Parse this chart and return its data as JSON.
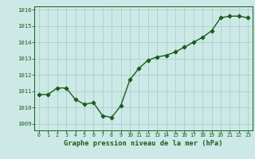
{
  "x": [
    0,
    1,
    2,
    3,
    4,
    5,
    6,
    7,
    8,
    9,
    10,
    11,
    12,
    13,
    14,
    15,
    16,
    17,
    18,
    19,
    20,
    21,
    22,
    23
  ],
  "y": [
    1010.8,
    1010.8,
    1011.2,
    1011.2,
    1010.5,
    1010.2,
    1010.3,
    1009.5,
    1009.4,
    1010.1,
    1011.7,
    1012.4,
    1012.9,
    1013.1,
    1013.2,
    1013.4,
    1013.7,
    1014.0,
    1014.3,
    1014.7,
    1015.5,
    1015.6,
    1015.6,
    1015.5
  ],
  "bg_color": "#cce9e7",
  "line_color": "#1a5c1a",
  "marker_color": "#1a5c1a",
  "grid_color": "#aacfcf",
  "xlabel": "Graphe pression niveau de la mer (hPa)",
  "xlabel_color": "#1a5c1a",
  "tick_color": "#1a5c1a",
  "ylim": [
    1008.6,
    1016.2
  ],
  "yticks": [
    1009,
    1010,
    1011,
    1012,
    1013,
    1014,
    1015,
    1016
  ],
  "xticks": [
    0,
    1,
    2,
    3,
    4,
    5,
    6,
    7,
    8,
    9,
    10,
    11,
    12,
    13,
    14,
    15,
    16,
    17,
    18,
    19,
    20,
    21,
    22,
    23
  ],
  "line_width": 1.0,
  "marker_size": 2.8
}
